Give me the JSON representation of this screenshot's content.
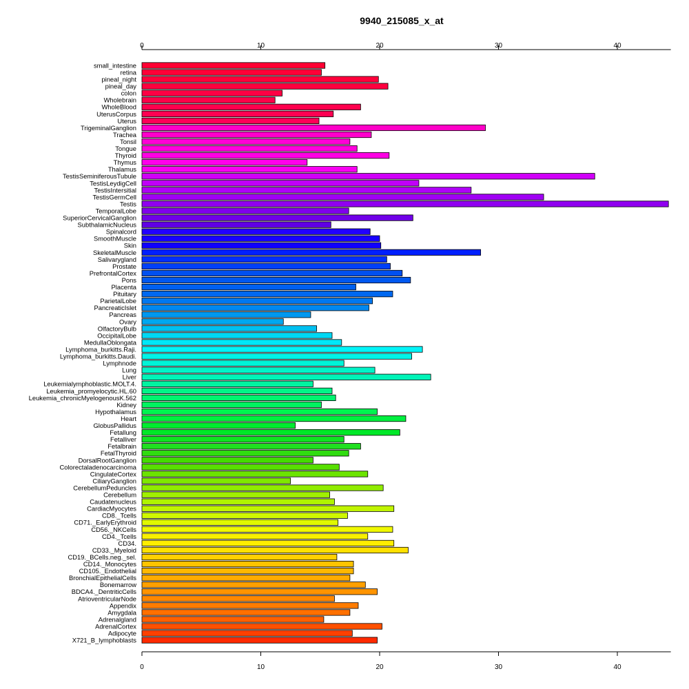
{
  "chart_data": {
    "type": "bar",
    "orientation": "horizontal",
    "title": "9940_215085_x_at",
    "xlabel": "",
    "ylabel": "",
    "xlim": [
      0,
      44.5
    ],
    "xticks": [
      0,
      10,
      20,
      30,
      40
    ],
    "grid": false,
    "legend": "none",
    "categories": [
      "small_intestine",
      "retina",
      "pineal_night",
      "pineal_day",
      "colon",
      "Wholebrain",
      "WholeBlood",
      "UterusCorpus",
      "Uterus",
      "TrigeminalGanglion",
      "Trachea",
      "Tonsil",
      "Tongue",
      "Thyroid",
      "Thymus",
      "Thalamus",
      "TestisSeminiferousTubule",
      "TestisLeydigCell",
      "TestisIntersitial",
      "TestisGermCell",
      "Testis",
      "TemporalLobe",
      "SuperiorCervicalGanglion",
      "SubthalamicNucleus",
      "Spinalcord",
      "SmoothMuscle",
      "Skin",
      "SkeletalMuscle",
      "Salivarygland",
      "Prostate",
      "PrefrontalCortex",
      "Pons",
      "Placenta",
      "Pituitary",
      "ParietalLobe",
      "PancreaticIslet",
      "Pancreas",
      "Ovary",
      "OlfactoryBulb",
      "OccipitalLobe",
      "MedullaOblongata",
      "Lymphoma_burkitts.Raji.",
      "Lymphoma_burkitts.Daudi.",
      "Lymphnode",
      "Lung",
      "Liver",
      "Leukemialymphoblastic.MOLT.4.",
      "Leukemia_promyelocytic.HL.60",
      "Leukemia_chronicMyelogenousK.562",
      "Kidney",
      "Hypothalamus",
      "Heart",
      "GlobusPallidus",
      "Fetallung",
      "Fetalliver",
      "Fetalbrain",
      "FetalThyroid",
      "DorsalRootGanglion",
      "Colorectaladenocarcinoma",
      "CingulateCortex",
      "CiliaryGanglion",
      "CerebellumPeduncles",
      "Cerebellum",
      "Caudatenucleus",
      "CardiacMyocytes",
      "CD8._Tcells",
      "CD71._EarlyErythroid",
      "CD56._NKCells",
      "CD4._Tcells",
      "CD34.",
      "CD33._Myeloid",
      "CD19._BCells.neg._sel.",
      "CD14._Monocytes",
      "CD105._Endothelial",
      "BronchialEpithelialCells",
      "Bonemarrow",
      "BDCA4._DentriticCells",
      "AtrioventricularNode",
      "Appendix",
      "Amygdala",
      "Adrenalgland",
      "AdrenalCortex",
      "Adipocyte",
      "X721_B_lymphoblasts"
    ],
    "values": [
      15.4,
      15.1,
      19.9,
      20.7,
      11.8,
      11.2,
      18.4,
      16.1,
      14.9,
      28.9,
      19.3,
      17.5,
      18.1,
      20.8,
      13.9,
      18.1,
      38.1,
      23.3,
      27.7,
      33.8,
      44.3,
      17.4,
      22.8,
      15.9,
      19.2,
      20.0,
      20.1,
      28.5,
      20.6,
      20.9,
      21.9,
      22.6,
      18.0,
      21.1,
      19.4,
      19.1,
      14.2,
      11.9,
      14.7,
      16.0,
      16.8,
      23.6,
      22.7,
      17.0,
      19.6,
      24.3,
      14.4,
      16.0,
      16.3,
      15.1,
      19.8,
      22.2,
      12.9,
      21.7,
      17.0,
      18.4,
      17.4,
      14.4,
      16.6,
      19.0,
      12.5,
      20.3,
      15.8,
      16.2,
      21.2,
      17.3,
      16.5,
      21.1,
      19.0,
      21.2,
      22.4,
      16.4,
      17.8,
      17.8,
      17.5,
      18.8,
      19.8,
      16.2,
      18.2,
      17.5,
      15.3,
      20.2,
      17.7,
      19.8
    ],
    "colors": [
      "#ff0033",
      "#ff0037",
      "#ff003b",
      "#ff003f",
      "#ff0044",
      "#ff0048",
      "#ff004d",
      "#ff0052",
      "#ff0057",
      "#ff00c8",
      "#ff00cc",
      "#ff00d6",
      "#ff00dd",
      "#ff00e4",
      "#ff00eb",
      "#f800f2",
      "#d000f8",
      "#c000f8",
      "#b000f8",
      "#a000f4",
      "#9000f0",
      "#8000ec",
      "#7000e8",
      "#6000e4",
      "#2200ff",
      "#1800ff",
      "#1000ff",
      "#0020ff",
      "#0030ff",
      "#0040f8",
      "#0050f0",
      "#0058f0",
      "#0060f0",
      "#0068f0",
      "#0078f0",
      "#0088f0",
      "#0098f0",
      "#00a8f0",
      "#00c0f0",
      "#00d8f4",
      "#00e8f8",
      "#00f4f8",
      "#00f4e8",
      "#00f4d8",
      "#00f4c8",
      "#00f4b8",
      "#00f4a0",
      "#00f488",
      "#00f470",
      "#00f460",
      "#00f450",
      "#00f040",
      "#00ec30",
      "#00e828",
      "#10e420",
      "#20e020",
      "#30dc10",
      "#44dc00",
      "#58e000",
      "#6ce400",
      "#80e800",
      "#90ec00",
      "#a0f000",
      "#b0f400",
      "#c0f400",
      "#d0f800",
      "#e0f800",
      "#f0f800",
      "#f8f000",
      "#ffee00",
      "#ffe000",
      "#ffd000",
      "#ffc400",
      "#ffb800",
      "#ffac00",
      "#ffa000",
      "#ff9400",
      "#ff8800",
      "#ff7c00",
      "#ff7000",
      "#ff6000",
      "#ff5000",
      "#ff4000",
      "#ff2a00"
    ]
  }
}
